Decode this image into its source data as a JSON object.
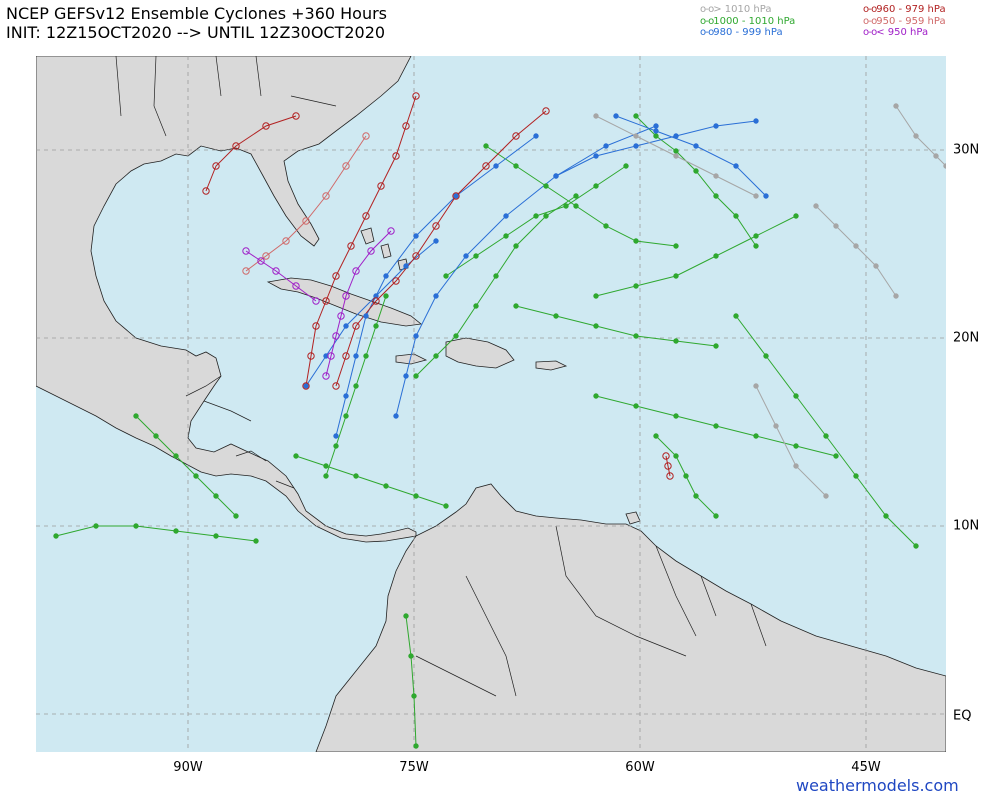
{
  "header": {
    "title": "NCEP GEFSv12 Ensemble Cyclones +360 Hours",
    "subtitle": "INIT: 12Z15OCT2020 --> UNTIL 12Z30OCT2020"
  },
  "legend": {
    "left": [
      {
        "label": "> 1010 hPa",
        "color": "#a6a6a6"
      },
      {
        "label": "1000 - 1010 hPa",
        "color": "#2fa82f"
      },
      {
        "label": "980 - 999 hPa",
        "color": "#2a6fd6"
      }
    ],
    "right": [
      {
        "label": "960 - 979 hPa",
        "color": "#b22222"
      },
      {
        "label": "950 - 959 hPa",
        "color": "#d06a6a"
      },
      {
        "label": "< 950 hPa",
        "color": "#a020c8"
      }
    ],
    "marker": "o-o"
  },
  "map": {
    "ocean_color": "#cfe9f2",
    "land_color": "#d9d9d9",
    "lon_labels": [
      "90W",
      "75W",
      "60W",
      "45W"
    ],
    "lat_labels": [
      "30N",
      "20N",
      "10N",
      "EQ"
    ]
  },
  "credit": "weathermodels.com"
}
